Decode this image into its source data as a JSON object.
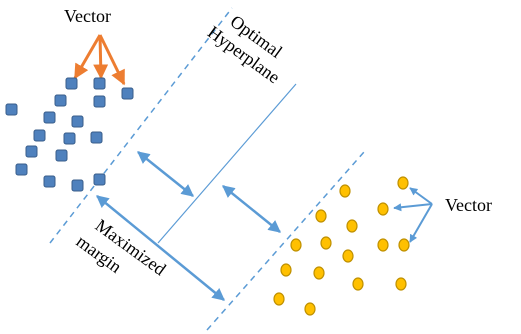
{
  "labels": {
    "vector_top": "Vector",
    "vector_right": "Vector",
    "hyperplane_line1": "Optimal",
    "hyperplane_line2": "Hyperplane",
    "margin_line1": "Maximized",
    "margin_line2": "margin"
  },
  "colors": {
    "square_fill": "#4f81bd",
    "square_stroke": "#385d8a",
    "circle_fill": "#ffc000",
    "circle_stroke": "#bf9000",
    "orange_arrow": "#ed7d31",
    "blue_line": "#5b9bd5"
  },
  "icons": {
    "class_a_marker": "blue-square",
    "class_b_marker": "yellow-circle"
  }
}
